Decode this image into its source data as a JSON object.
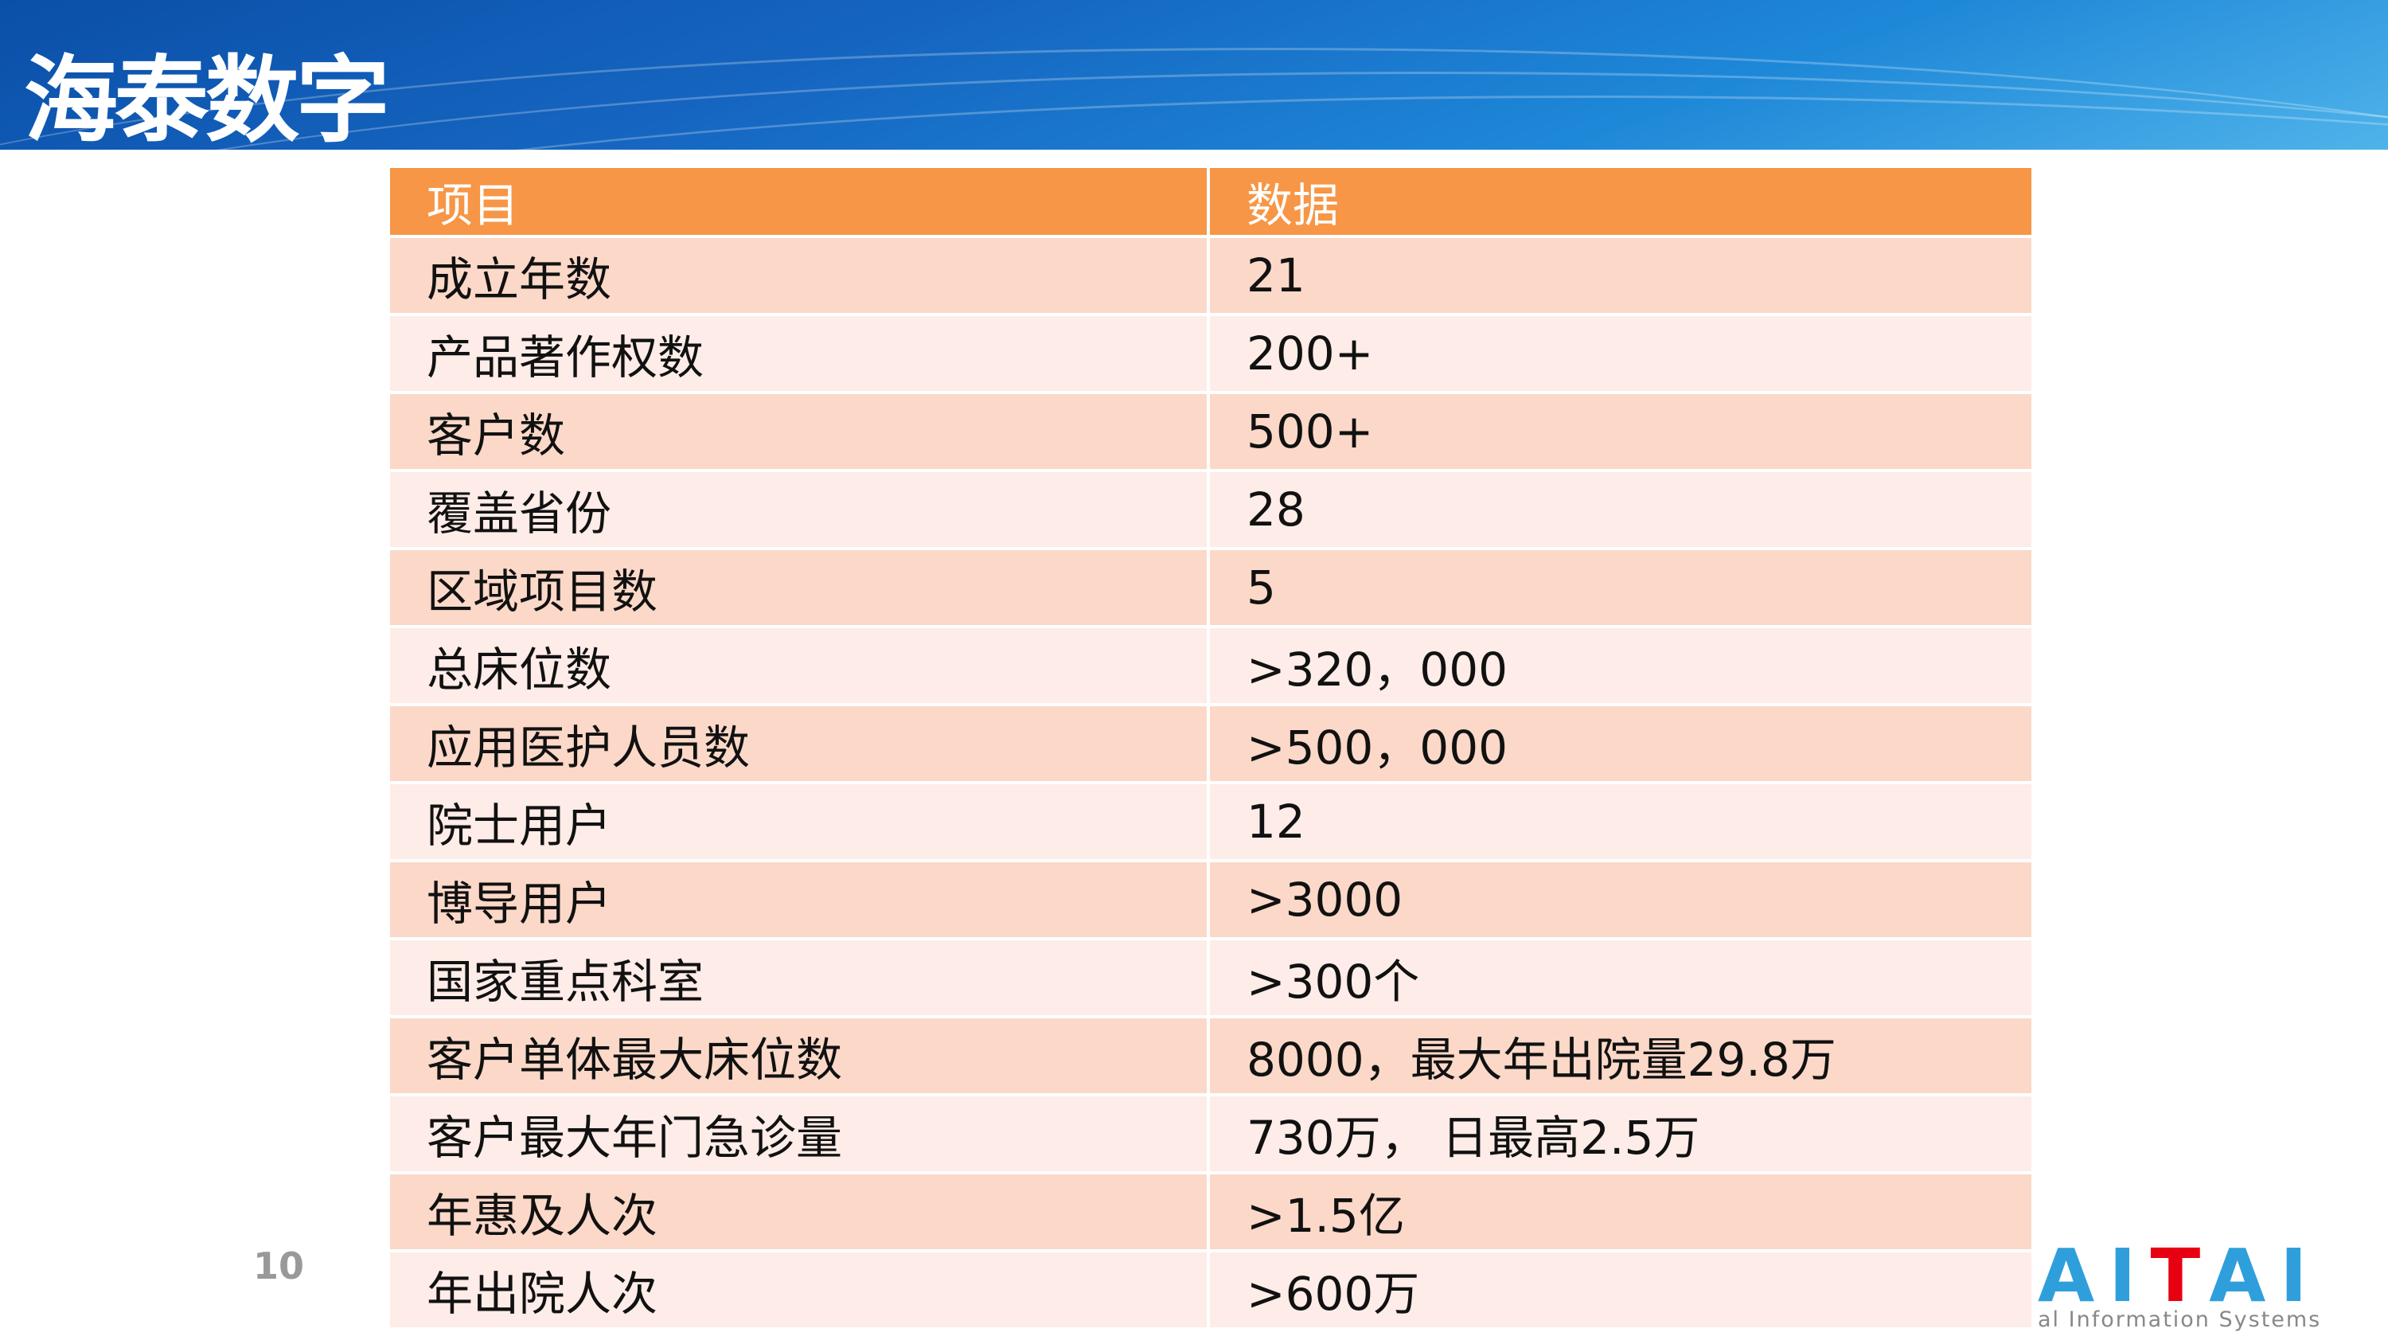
{
  "header": {
    "title": "海泰数字"
  },
  "table": {
    "columns": [
      "项目",
      "数据"
    ],
    "rows": [
      [
        "成立年数",
        "21"
      ],
      [
        "产品著作权数",
        "200+"
      ],
      [
        "客户数",
        "500+"
      ],
      [
        "覆盖省份",
        "28"
      ],
      [
        "区域项目数",
        "5"
      ],
      [
        "总床位数",
        ">320，000"
      ],
      [
        "应用医护人员数",
        ">500，000"
      ],
      [
        "院士用户",
        "12"
      ],
      [
        "博导用户",
        ">3000"
      ],
      [
        "国家重点科室",
        ">300个"
      ],
      [
        "客户单体最大床位数",
        "8000，最大年出院量29.8万"
      ],
      [
        "客户最大年门急诊量",
        "730万， 日最高2.5万"
      ],
      [
        "年惠及人次",
        ">1.5亿"
      ],
      [
        "年出院人次",
        ">600万"
      ]
    ]
  },
  "footer": {
    "page_number": "10",
    "logo": {
      "letters": "AITAI",
      "subtitle": "al Information Systems"
    }
  },
  "colors": {
    "header_bg": "#F79646",
    "row_odd": "#FBD8C8",
    "row_even": "#FDECE7",
    "banner": "#1565c0",
    "logo_blue": "#2f9fdc",
    "logo_red": "#e60012"
  }
}
